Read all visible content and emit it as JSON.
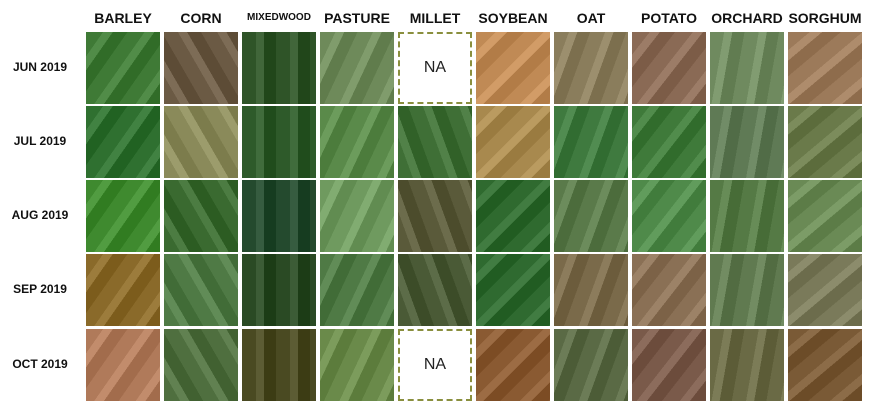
{
  "columns": [
    "BARLEY",
    "CORN",
    "MIXEDWOOD",
    "PASTURE",
    "MILLET",
    "SOYBEAN",
    "OAT",
    "POTATO",
    "ORCHARD",
    "SORGHUM"
  ],
  "rows": [
    "JUN 2019",
    "JUL 2019",
    "AUG 2019",
    "SEP 2019",
    "OCT 2019"
  ],
  "na_label": "NA",
  "na_cells": [
    [
      0,
      4
    ],
    [
      4,
      4
    ]
  ],
  "tile_colors": [
    [
      "#3f7a36",
      "#6b5a44",
      "#2f5428",
      "#6e8a5a",
      null,
      "#c08a55",
      "#8a7d5c",
      "#8a6a55",
      "#6f8a5f",
      "#9c7a5a"
    ],
    [
      "#2f7030",
      "#8a8a5a",
      "#2e5a2a",
      "#5a8a4a",
      "#3f6f36",
      "#a8894e",
      "#3f7a3f",
      "#3f7a3a",
      "#5f7a55",
      "#6a7a4a"
    ],
    [
      "#3f8a2f",
      "#3a6a30",
      "#244a2e",
      "#6f9a5f",
      "#5a5a3a",
      "#2f6a2f",
      "#5a7a4a",
      "#4f8a4a",
      "#557a45",
      "#6a8a55"
    ],
    [
      "#8a6a2a",
      "#4f7a45",
      "#2a4a24",
      "#4f7a45",
      "#4a5a36",
      "#2f6a30",
      "#7a6a4a",
      "#8a7055",
      "#607a50",
      "#7a7a5a"
    ],
    [
      "#b07a5a",
      "#4f6f3f",
      "#4a4a22",
      "#6a8a4a",
      null,
      "#8a5a32",
      "#5a6a45",
      "#7a5a4a",
      "#6a6a45",
      "#7a5a36"
    ]
  ]
}
